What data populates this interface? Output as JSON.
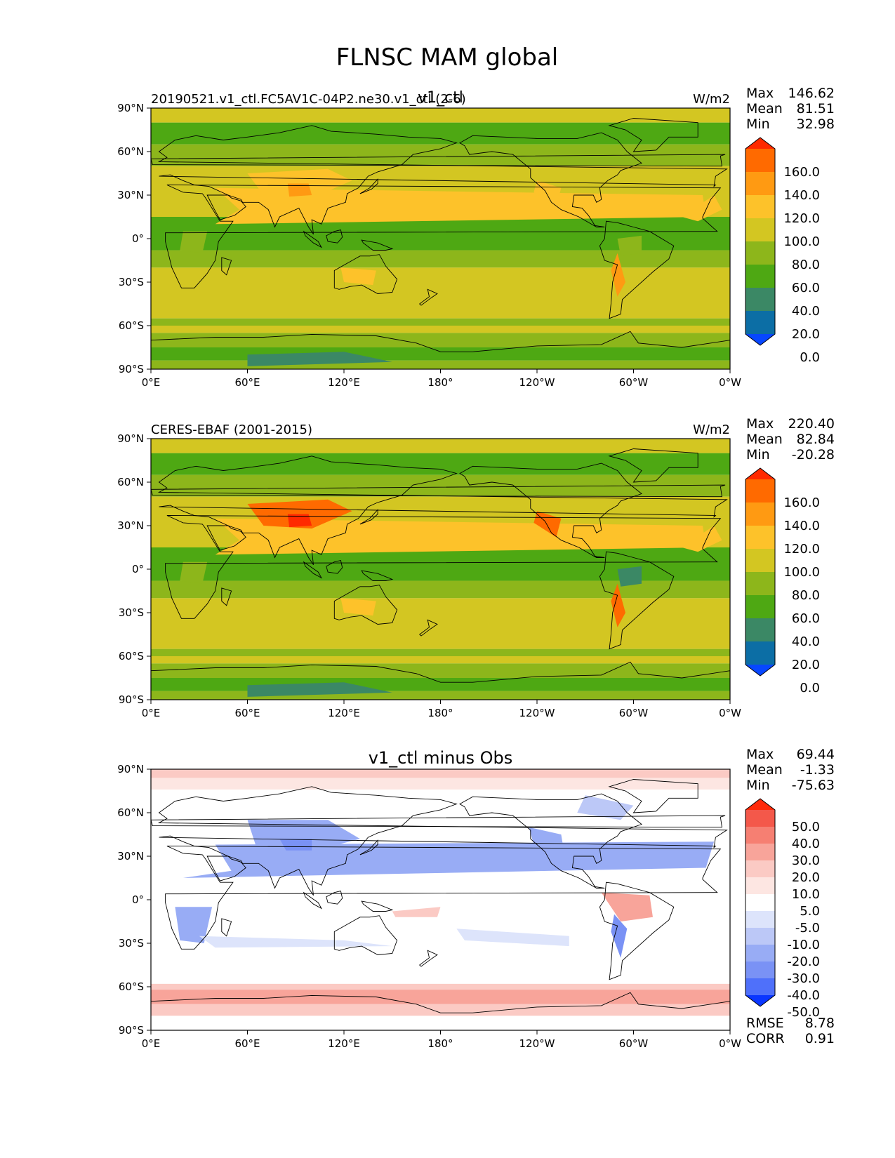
{
  "figure": {
    "title": "FLNSC MAM global"
  },
  "chart_data": [
    {
      "type": "heatmap",
      "id": "test",
      "title": "v1_ctl",
      "left_title": "20190521.v1_ctl.FC5AV1C-04P2.ne30.v1_ctl (2-6)",
      "units": "W/m2",
      "stats": [
        {
          "label": "Max",
          "value": "146.62"
        },
        {
          "label": "Mean",
          "value": "81.51"
        },
        {
          "label": "Min",
          "value": "32.98"
        }
      ],
      "colorbar": {
        "extend": "both",
        "labels": [
          "160.0",
          "140.0",
          "120.0",
          "100.0",
          "80.0",
          "60.0",
          "40.0",
          "20.0",
          "0.0"
        ],
        "colors": [
          "#ff2a00",
          "#ff6a00",
          "#ff9a12",
          "#fdc22a",
          "#d3c622",
          "#8db61b",
          "#4ea813",
          "#3b8865",
          "#0c6ea5",
          "#0747ff"
        ]
      },
      "x_ticks": [
        "0°E",
        "60°E",
        "120°E",
        "180°",
        "120°W",
        "60°W",
        "0°W"
      ],
      "y_ticks": [
        "90°N",
        "60°N",
        "30°N",
        "0°",
        "30°S",
        "60°S",
        "90°S"
      ],
      "xlim": [
        0,
        360
      ],
      "ylim": [
        -90,
        90
      ]
    },
    {
      "type": "heatmap",
      "id": "ref",
      "title": "",
      "left_title": "CERES-EBAF (2001-2015)",
      "units": "W/m2",
      "stats": [
        {
          "label": "Max",
          "value": "220.40"
        },
        {
          "label": "Mean",
          "value": "82.84"
        },
        {
          "label": "Min",
          "value": "-20.28"
        }
      ],
      "colorbar": {
        "extend": "both",
        "labels": [
          "160.0",
          "140.0",
          "120.0",
          "100.0",
          "80.0",
          "60.0",
          "40.0",
          "20.0",
          "0.0"
        ],
        "colors": [
          "#ff2a00",
          "#ff6a00",
          "#ff9a12",
          "#fdc22a",
          "#d3c622",
          "#8db61b",
          "#4ea813",
          "#3b8865",
          "#0c6ea5",
          "#0747ff"
        ]
      },
      "x_ticks": [
        "0°E",
        "60°E",
        "120°E",
        "180°",
        "120°W",
        "60°W",
        "0°W"
      ],
      "y_ticks": [
        "90°N",
        "60°N",
        "30°N",
        "0°",
        "30°S",
        "60°S",
        "90°S"
      ],
      "xlim": [
        0,
        360
      ],
      "ylim": [
        -90,
        90
      ]
    },
    {
      "type": "heatmap",
      "id": "diff",
      "title": "v1_ctl minus Obs",
      "left_title": "",
      "units": "",
      "stats": [
        {
          "label": "Max",
          "value": "69.44"
        },
        {
          "label": "Mean",
          "value": "-1.33"
        },
        {
          "label": "Min",
          "value": "-75.63"
        }
      ],
      "metrics": [
        {
          "label": "RMSE",
          "value": "8.78"
        },
        {
          "label": "CORR",
          "value": "0.91"
        }
      ],
      "colorbar": {
        "extend": "both",
        "labels": [
          "50.0",
          "40.0",
          "30.0",
          "20.0",
          "10.0",
          "5.0",
          "-5.0",
          "-10.0",
          "-20.0",
          "-30.0",
          "-40.0",
          "-50.0"
        ],
        "colors": [
          "#ff2a0a",
          "#f4584a",
          "#f67f72",
          "#f8a49a",
          "#fbcac4",
          "#fde6e2",
          "#ffffff",
          "#dde4fb",
          "#bcc8f7",
          "#98acf5",
          "#7a92f5",
          "#4f70fa",
          "#0a36ff"
        ]
      },
      "x_ticks": [
        "0°E",
        "60°E",
        "120°E",
        "180°",
        "120°W",
        "60°W",
        "0°W"
      ],
      "y_ticks": [
        "90°N",
        "60°N",
        "30°N",
        "0°",
        "30°S",
        "60°S",
        "90°S"
      ],
      "xlim": [
        0,
        360
      ],
      "ylim": [
        -90,
        90
      ]
    }
  ]
}
